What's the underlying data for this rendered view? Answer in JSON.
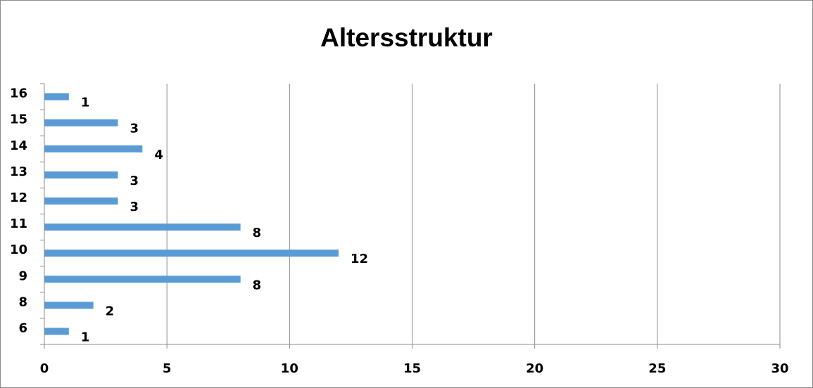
{
  "chart_data": {
    "type": "bar",
    "orientation": "horizontal",
    "title": "Altersstruktur",
    "xlabel": "",
    "ylabel": "",
    "categories": [
      "6",
      "8",
      "9",
      "10",
      "11",
      "12",
      "13",
      "14",
      "15",
      "16"
    ],
    "values": [
      1,
      2,
      8,
      12,
      8,
      3,
      3,
      4,
      3,
      1
    ],
    "xlim": [
      0,
      30
    ],
    "x_ticks": [
      0,
      5,
      10,
      15,
      20,
      25,
      30
    ],
    "grid": "vertical",
    "legend": "none",
    "data_labels": true,
    "bar_color": "#5b9bd5",
    "grid_color": "#8c8c8c"
  }
}
